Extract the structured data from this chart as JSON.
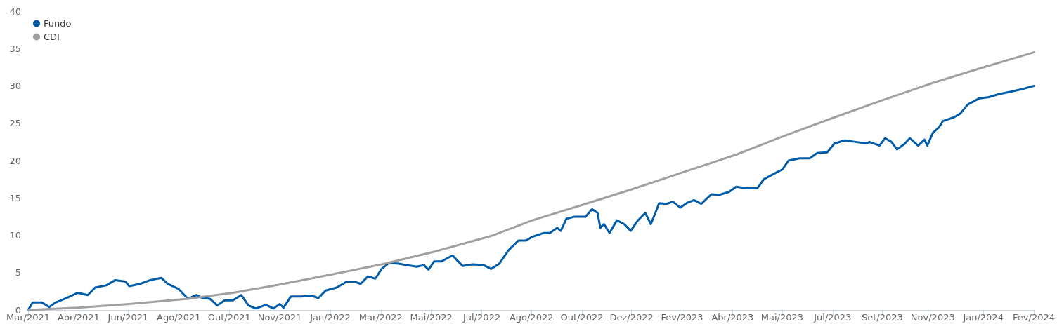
{
  "chart_data": {
    "type": "line",
    "legend": "top left",
    "grid": false,
    "marker": "none",
    "line_style": "solid",
    "ylim": [
      0,
      40
    ],
    "yticks": [
      0,
      5,
      10,
      15,
      20,
      25,
      30,
      35,
      40
    ],
    "xlim": [
      "2021-03-01",
      "2024-02-29"
    ],
    "xticks": [
      {
        "value": "2021-03-01",
        "label": "Mar/2021"
      },
      {
        "value": "2021-04-25",
        "label": "Abr/2021"
      },
      {
        "value": "2021-06-18",
        "label": "Jun/2021"
      },
      {
        "value": "2021-08-12",
        "label": "Ago/2021"
      },
      {
        "value": "2021-10-06",
        "label": "Out/2021"
      },
      {
        "value": "2021-11-30",
        "label": "Nov/2021"
      },
      {
        "value": "2022-01-24",
        "label": "Jan/2022"
      },
      {
        "value": "2022-03-20",
        "label": "Mar/2022"
      },
      {
        "value": "2022-05-14",
        "label": "Mai/2022"
      },
      {
        "value": "2022-07-08",
        "label": "Jul/2022"
      },
      {
        "value": "2022-08-31",
        "label": "Ago/2022"
      },
      {
        "value": "2022-10-25",
        "label": "Out/2022"
      },
      {
        "value": "2022-12-18",
        "label": "Dez/2022"
      },
      {
        "value": "2023-02-11",
        "label": "Fev/2023"
      },
      {
        "value": "2023-04-07",
        "label": "Abr/2023"
      },
      {
        "value": "2023-05-31",
        "label": "Mai/2023"
      },
      {
        "value": "2023-07-25",
        "label": "Jul/2023"
      },
      {
        "value": "2023-09-17",
        "label": "Set/2023"
      },
      {
        "value": "2023-11-11",
        "label": "Nov/2023"
      },
      {
        "value": "2024-01-05",
        "label": "Jan/2024"
      },
      {
        "value": "2024-02-29",
        "label": "Fev/2024"
      }
    ],
    "series": [
      {
        "name": "Fundo",
        "color": "#005ca9",
        "x": [
          "2021-03-01",
          "2021-03-06",
          "2021-03-16",
          "2021-03-24",
          "2021-03-31",
          "2021-04-12",
          "2021-04-24",
          "2021-05-05",
          "2021-05-13",
          "2021-05-25",
          "2021-06-04",
          "2021-06-15",
          "2021-06-19",
          "2021-07-01",
          "2021-07-12",
          "2021-07-24",
          "2021-07-31",
          "2021-08-12",
          "2021-08-22",
          "2021-08-31",
          "2021-09-07",
          "2021-09-15",
          "2021-09-23",
          "2021-10-01",
          "2021-10-10",
          "2021-10-19",
          "2021-10-27",
          "2021-11-04",
          "2021-11-15",
          "2021-11-23",
          "2021-11-30",
          "2021-12-04",
          "2021-12-12",
          "2021-12-23",
          "2022-01-04",
          "2022-01-11",
          "2022-01-19",
          "2022-01-31",
          "2022-02-11",
          "2022-02-19",
          "2022-02-26",
          "2022-03-06",
          "2022-03-14",
          "2022-03-21",
          "2022-03-29",
          "2022-04-09",
          "2022-04-17",
          "2022-04-28",
          "2022-05-06",
          "2022-05-11",
          "2022-05-17",
          "2022-05-25",
          "2022-06-06",
          "2022-06-17",
          "2022-06-28",
          "2022-07-10",
          "2022-07-18",
          "2022-07-27",
          "2022-08-06",
          "2022-08-17",
          "2022-08-25",
          "2022-09-01",
          "2022-09-13",
          "2022-09-20",
          "2022-09-28",
          "2022-10-02",
          "2022-10-08",
          "2022-10-17",
          "2022-10-29",
          "2022-11-05",
          "2022-11-11",
          "2022-11-14",
          "2022-11-18",
          "2022-11-24",
          "2022-12-02",
          "2022-12-10",
          "2022-12-17",
          "2022-12-25",
          "2023-01-02",
          "2023-01-08",
          "2023-01-13",
          "2023-01-17",
          "2023-01-25",
          "2023-02-01",
          "2023-02-09",
          "2023-02-16",
          "2023-02-24",
          "2023-03-04",
          "2023-03-15",
          "2023-03-23",
          "2023-04-03",
          "2023-04-11",
          "2023-04-22",
          "2023-05-04",
          "2023-05-11",
          "2023-05-23",
          "2023-05-31",
          "2023-06-07",
          "2023-06-19",
          "2023-06-30",
          "2023-07-08",
          "2023-07-19",
          "2023-07-27",
          "2023-08-07",
          "2023-08-19",
          "2023-08-31",
          "2023-09-03",
          "2023-09-14",
          "2023-09-20",
          "2023-09-27",
          "2023-10-03",
          "2023-10-11",
          "2023-10-17",
          "2023-10-26",
          "2023-11-02",
          "2023-11-05",
          "2023-11-11",
          "2023-11-18",
          "2023-11-22",
          "2023-12-04",
          "2023-12-11",
          "2023-12-19",
          "2023-12-31",
          "2024-01-11",
          "2024-01-22",
          "2024-02-03",
          "2024-02-14",
          "2024-02-29"
        ],
        "values": [
          0,
          1.0,
          1.0,
          0.4,
          1.0,
          1.6,
          2.3,
          2.0,
          3.0,
          3.3,
          4.0,
          3.8,
          3.2,
          3.5,
          4.0,
          4.3,
          3.5,
          2.8,
          1.5,
          2.0,
          1.6,
          1.5,
          0.6,
          1.3,
          1.3,
          2.0,
          0.6,
          0.2,
          0.7,
          0.2,
          0.8,
          0.3,
          1.8,
          1.8,
          1.9,
          1.6,
          2.6,
          3.0,
          3.8,
          3.8,
          3.5,
          4.5,
          4.2,
          5.5,
          6.3,
          6.2,
          6.0,
          5.8,
          6.0,
          5.4,
          6.5,
          6.5,
          7.3,
          5.9,
          6.1,
          6.0,
          5.5,
          6.2,
          8.0,
          9.3,
          9.3,
          9.8,
          10.3,
          10.3,
          11.0,
          10.6,
          12.2,
          12.5,
          12.5,
          13.5,
          13.0,
          11.0,
          11.5,
          10.3,
          12.0,
          11.5,
          10.6,
          12.0,
          13.0,
          11.5,
          13.0,
          14.3,
          14.2,
          14.5,
          13.7,
          14.3,
          14.7,
          14.2,
          15.5,
          15.4,
          15.8,
          16.5,
          16.3,
          16.3,
          17.5,
          18.3,
          18.8,
          20.0,
          20.3,
          20.3,
          21.0,
          21.1,
          22.3,
          22.7,
          22.5,
          22.3,
          22.5,
          22.0,
          23.0,
          22.5,
          21.5,
          22.2,
          23.0,
          22.0,
          22.8,
          22.0,
          23.7,
          24.5,
          25.3,
          25.8,
          26.3,
          27.5,
          28.3,
          28.5,
          28.9,
          29.2,
          29.5,
          30.0
        ]
      },
      {
        "name": "CDI",
        "color": "#a0a0a0",
        "x": [
          "2021-03-01",
          "2021-04-24",
          "2021-06-19",
          "2021-08-22",
          "2021-10-10",
          "2021-11-30",
          "2022-01-19",
          "2022-03-21",
          "2022-05-17",
          "2022-07-18",
          "2022-09-01",
          "2022-10-29",
          "2022-12-17",
          "2023-02-16",
          "2023-04-11",
          "2023-05-31",
          "2023-07-27",
          "2023-09-20",
          "2023-11-11",
          "2023-12-31",
          "2024-02-29"
        ],
        "values": [
          0,
          0.3,
          0.8,
          1.5,
          2.3,
          3.4,
          4.6,
          6.1,
          7.8,
          9.9,
          12.0,
          14.2,
          16.1,
          18.6,
          20.8,
          23.2,
          25.8,
          28.2,
          30.4,
          32.3,
          34.5
        ]
      }
    ]
  }
}
